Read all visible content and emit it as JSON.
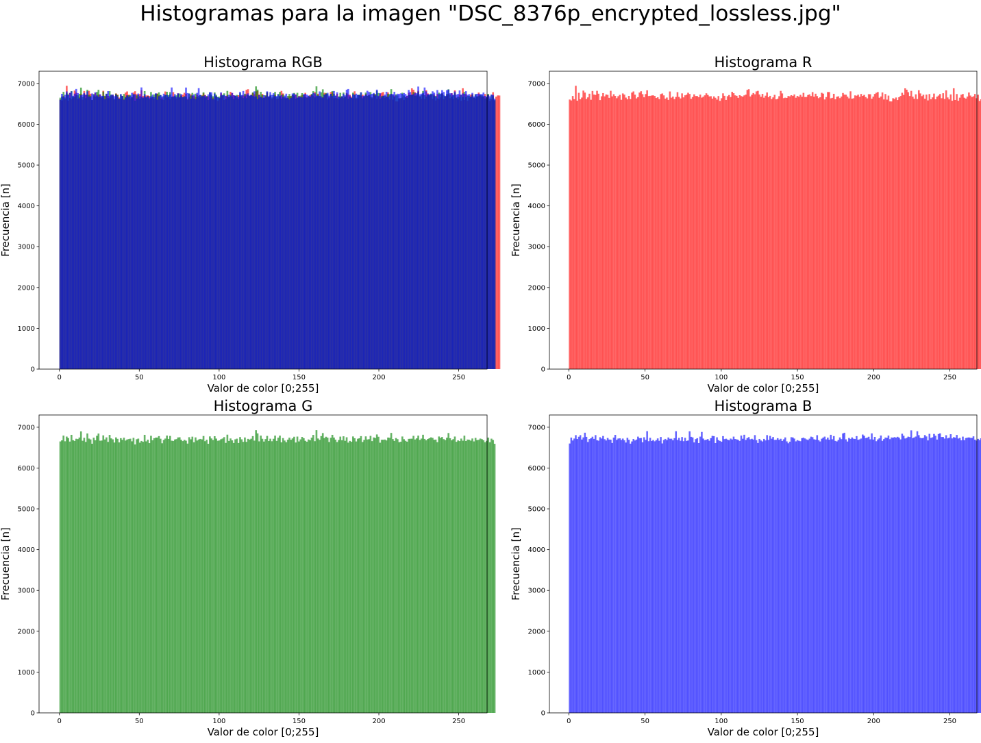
{
  "figure": {
    "suptitle": "Histogramas para la imagen \"DSC_8376p_encrypted_lossless.jpg\""
  },
  "chart_data": [
    {
      "type": "bar",
      "id": "rgb",
      "title": "Histograma RGB",
      "xlabel": "Valor de color [0;255]",
      "ylabel": "Frecuencia [n]",
      "xlim": [
        -12.75,
        267.75
      ],
      "ylim": [
        0,
        7300
      ],
      "xticks": [
        0,
        50,
        100,
        150,
        200,
        250
      ],
      "yticks": [
        0,
        1000,
        2000,
        3000,
        4000,
        5000,
        6000,
        7000
      ],
      "overlay": true,
      "series": [
        {
          "name": "R",
          "color": "#ff0000",
          "opacity": 0.6,
          "values_ref": "r"
        },
        {
          "name": "G",
          "color": "#008000",
          "opacity": 0.6,
          "values_ref": "g"
        },
        {
          "name": "B",
          "color": "#0000ff",
          "opacity": 0.6,
          "values_ref": "b"
        }
      ]
    },
    {
      "type": "bar",
      "id": "r",
      "title": "Histograma R",
      "xlabel": "Valor de color [0;255]",
      "ylabel": "Frecuencia [n]",
      "xlim": [
        -12.75,
        267.75
      ],
      "ylim": [
        0,
        7300
      ],
      "xticks": [
        0,
        50,
        100,
        150,
        200,
        250
      ],
      "yticks": [
        0,
        1000,
        2000,
        3000,
        4000,
        5000,
        6000,
        7000
      ],
      "color": "#ff0000",
      "opacity": 0.6,
      "bin_start": 0,
      "bin_width": 0.996,
      "values": [
        6606,
        6584,
        6694,
        6615,
        6943,
        6578,
        6771,
        6612,
        6655,
        6825,
        6776,
        6620,
        6659,
        6749,
        6601,
        6816,
        6728,
        6719,
        6820,
        6749,
        6593,
        6686,
        6764,
        6684,
        6729,
        6721,
        6648,
        6820,
        6684,
        6736,
        6696,
        6639,
        6688,
        6721,
        6600,
        6756,
        6727,
        6654,
        6611,
        6696,
        6616,
        6776,
        6805,
        6725,
        6634,
        6664,
        6777,
        6810,
        6738,
        6661,
        6740,
        6832,
        6692,
        6698,
        6705,
        6709,
        6695,
        6644,
        6661,
        6615,
        6740,
        6755,
        6708,
        6627,
        6655,
        6598,
        6804,
        6652,
        6679,
        6616,
        6669,
        6787,
        6671,
        6633,
        6757,
        6659,
        6710,
        6725,
        6772,
        6743,
        6624,
        6668,
        6733,
        6693,
        6692,
        6663,
        6727,
        6653,
        6676,
        6709,
        6759,
        6719,
        6683,
        6688,
        6628,
        6684,
        6650,
        6605,
        6692,
        6574,
        6638,
        6758,
        6698,
        6596,
        6688,
        6717,
        6667,
        6795,
        6762,
        6709,
        6698,
        6648,
        6713,
        6691,
        6677,
        6708,
        6726,
        6842,
        6860,
        6682,
        6724,
        6765,
        6735,
        6806,
        6819,
        6730,
        6674,
        6745,
        6651,
        6701,
        6779,
        6662,
        6697,
        6617,
        6659,
        6721,
        6611,
        6624,
        6688,
        6818,
        6756,
        6640,
        6652,
        6645,
        6692,
        6685,
        6713,
        6694,
        6730,
        6651,
        6695,
        6673,
        6721,
        6674,
        6770,
        6667,
        6670,
        6717,
        6733,
        6692,
        6788,
        6675,
        6749,
        6691,
        6640,
        6662,
        6771,
        6751,
        6608,
        6667,
        6790,
        6789,
        6636,
        6648,
        6747,
        6612,
        6674,
        6685,
        6641,
        6680,
        6767,
        6727,
        6724,
        6677,
        6635,
        6808,
        6627,
        6638,
        6708,
        6700,
        6725,
        6672,
        6743,
        6695,
        6720,
        6667,
        6635,
        6738,
        6736,
        6626,
        6678,
        6743,
        6772,
        6790,
        6650,
        6681,
        6779,
        6608,
        6742,
        6604,
        6703,
        6561,
        6559,
        6639,
        6620,
        6656,
        6594,
        6662,
        6694,
        6772,
        6719,
        6881,
        6847,
        6786,
        6693,
        6819,
        6676,
        6624,
        6734,
        6619,
        6834,
        6756,
        6690,
        6724,
        6626,
        6727,
        6585,
        6741,
        6613,
        6659,
        6752,
        6612,
        6676,
        6704,
        6742,
        6639,
        6761,
        6620,
        6831,
        6657,
        6610,
        6731,
        6577,
        6882,
        6596,
        6741,
        6576,
        6652,
        6725,
        6742,
        6651,
        6630,
        6680,
        6778,
        6704,
        6666,
        6686,
        6742,
        6639,
        6724,
        6572,
        6612,
        6786,
        6574,
        6677,
        6707,
        6705
      ]
    },
    {
      "type": "bar",
      "id": "g",
      "title": "Histograma G",
      "xlabel": "Valor de color [0;255]",
      "ylabel": "Frecuencia [n]",
      "xlim": [
        -12.75,
        267.75
      ],
      "ylim": [
        0,
        7300
      ],
      "xticks": [
        0,
        50,
        100,
        150,
        200,
        250
      ],
      "yticks": [
        0,
        1000,
        2000,
        3000,
        4000,
        5000,
        6000,
        7000
      ],
      "color": "#008000",
      "opacity": 0.6,
      "bin_start": 0,
      "bin_width": 0.996,
      "values": [
        6652,
        6678,
        6795,
        6656,
        6771,
        6735,
        6649,
        6814,
        6682,
        6665,
        6718,
        6709,
        6747,
        6898,
        6669,
        6741,
        6640,
        6847,
        6722,
        6701,
        6596,
        6743,
        6680,
        6790,
        6845,
        6670,
        6674,
        6801,
        6700,
        6751,
        6640,
        6812,
        6727,
        6703,
        6625,
        6751,
        6716,
        6628,
        6732,
        6691,
        6743,
        6673,
        6699,
        6710,
        6719,
        6655,
        6740,
        6578,
        6706,
        6721,
        6622,
        6664,
        6643,
        6814,
        6654,
        6695,
        6611,
        6790,
        6681,
        6732,
        6745,
        6747,
        6782,
        6718,
        6607,
        6688,
        6722,
        6795,
        6714,
        6787,
        6671,
        6663,
        6700,
        6709,
        6750,
        6754,
        6692,
        6661,
        6690,
        6671,
        6599,
        6756,
        6704,
        6769,
        6632,
        6751,
        6674,
        6699,
        6714,
        6702,
        6785,
        6658,
        6693,
        6595,
        6775,
        6725,
        6687,
        6780,
        6722,
        6668,
        6677,
        6707,
        6723,
        6758,
        6617,
        6818,
        6664,
        6725,
        6678,
        6614,
        6704,
        6720,
        6614,
        6759,
        6704,
        6642,
        6749,
        6641,
        6715,
        6697,
        6719,
        6782,
        6672,
        6928,
        6849,
        6654,
        6794,
        6717,
        6649,
        6710,
        6787,
        6662,
        6719,
        6657,
        6717,
        6794,
        6665,
        6743,
        6794,
        6630,
        6734,
        6674,
        6632,
        6695,
        6744,
        6693,
        6726,
        6767,
        6626,
        6771,
        6652,
        6702,
        6763,
        6730,
        6668,
        6646,
        6700,
        6679,
        6743,
        6812,
        6658,
        6929,
        6724,
        6691,
        6783,
        6857,
        6734,
        6767,
        6744,
        6638,
        6741,
        6814,
        6747,
        6696,
        6637,
        6686,
        6770,
        6682,
        6778,
        6668,
        6754,
        6623,
        6665,
        6644,
        6774,
        6731,
        6652,
        6718,
        6729,
        6782,
        6638,
        6689,
        6776,
        6700,
        6707,
        6788,
        6660,
        6749,
        6736,
        6823,
        6767,
        6621,
        6693,
        6693,
        6698,
        6676,
        6747,
        6741,
        6861,
        6710,
        6665,
        6735,
        6708,
        6632,
        6645,
        6773,
        6707,
        6668,
        6646,
        6715,
        6718,
        6719,
        6789,
        6700,
        6727,
        6794,
        6689,
        6722,
        6816,
        6714,
        6679,
        6712,
        6730,
        6752,
        6739,
        6693,
        6697,
        6634,
        6773,
        6738,
        6760,
        6709,
        6685,
        6742,
        6858,
        6730,
        6680,
        6708,
        6772,
        6643,
        6677,
        6661,
        6722,
        6670,
        6793,
        6662,
        6698,
        6693,
        6672,
        6724,
        6653,
        6739,
        6684,
        6692,
        6722,
        6708,
        6682,
        6632,
        6666,
        6745,
        6632,
        6720,
        6687,
        6594
      ]
    },
    {
      "type": "bar",
      "id": "b",
      "title": "Histograma B",
      "xlabel": "Valor de color [0;255]",
      "ylabel": "Frecuencia [n]",
      "xlim": [
        -12.75,
        267.75
      ],
      "ylim": [
        0,
        7300
      ],
      "xticks": [
        0,
        50,
        100,
        150,
        200,
        250
      ],
      "yticks": [
        0,
        1000,
        2000,
        3000,
        4000,
        5000,
        6000,
        7000
      ],
      "color": "#0000ff",
      "opacity": 0.6,
      "bin_start": 0,
      "bin_width": 0.996,
      "values": [
        6601,
        6746,
        6675,
        6723,
        6806,
        6712,
        6767,
        6806,
        6699,
        6751,
        6866,
        6764,
        6638,
        6711,
        6729,
        6768,
        6715,
        6807,
        6681,
        6671,
        6755,
        6723,
        6786,
        6708,
        6675,
        6737,
        6698,
        6695,
        6614,
        6746,
        6813,
        6690,
        6723,
        6728,
        6688,
        6722,
        6681,
        6625,
        6740,
        6693,
        6598,
        6652,
        6712,
        6676,
        6698,
        6770,
        6732,
        6736,
        6631,
        6754,
        6690,
        6903,
        6658,
        6740,
        6664,
        6687,
        6656,
        6684,
        6726,
        6668,
        6761,
        6603,
        6687,
        6714,
        6684,
        6749,
        6718,
        6719,
        6679,
        6732,
        6902,
        6688,
        6739,
        6669,
        6760,
        6658,
        6741,
        6665,
        6675,
        6900,
        6765,
        6750,
        6628,
        6709,
        6731,
        6612,
        6770,
        6885,
        6722,
        6684,
        6696,
        6709,
        6670,
        6732,
        6788,
        6782,
        6613,
        6753,
        6685,
        6665,
        6645,
        6782,
        6710,
        6719,
        6697,
        6681,
        6722,
        6700,
        6770,
        6712,
        6702,
        6690,
        6666,
        6796,
        6718,
        6816,
        6688,
        6734,
        6757,
        6705,
        6717,
        6698,
        6807,
        6683,
        6614,
        6713,
        6675,
        6652,
        6714,
        6677,
        6807,
        6689,
        6788,
        6719,
        6761,
        6690,
        6692,
        6732,
        6692,
        6717,
        6664,
        6704,
        6750,
        6653,
        6607,
        6646,
        6756,
        6749,
        6722,
        6654,
        6683,
        6669,
        6658,
        6732,
        6744,
        6725,
        6702,
        6685,
        6720,
        6769,
        6756,
        6705,
        6696,
        6805,
        6683,
        6652,
        6719,
        6746,
        6770,
        6703,
        6746,
        6694,
        6815,
        6705,
        6783,
        6666,
        6652,
        6688,
        6750,
        6708,
        6847,
        6865,
        6703,
        6650,
        6737,
        6715,
        6750,
        6719,
        6712,
        6782,
        6691,
        6703,
        6723,
        6821,
        6791,
        6734,
        6745,
        6767,
        6704,
        6849,
        6698,
        6763,
        6658,
        6701,
        6727,
        6797,
        6667,
        6709,
        6747,
        6740,
        6796,
        6708,
        6749,
        6742,
        6758,
        6746,
        6766,
        6744,
        6702,
        6841,
        6791,
        6724,
        6738,
        6769,
        6760,
        6924,
        6733,
        6751,
        6772,
        6901,
        6806,
        6741,
        6729,
        6740,
        6808,
        6774,
        6677,
        6838,
        6738,
        6753,
        6836,
        6792,
        6698,
        6834,
        6850,
        6761,
        6761,
        6722,
        6804,
        6727,
        6742,
        6829,
        6726,
        6757,
        6745,
        6811,
        6723,
        6738,
        6679,
        6770,
        6683,
        6735,
        6745,
        6750,
        6740,
        6738,
        6777,
        6696,
        6673,
        6715,
        6686,
        6729,
        6719,
        6628
      ]
    }
  ]
}
